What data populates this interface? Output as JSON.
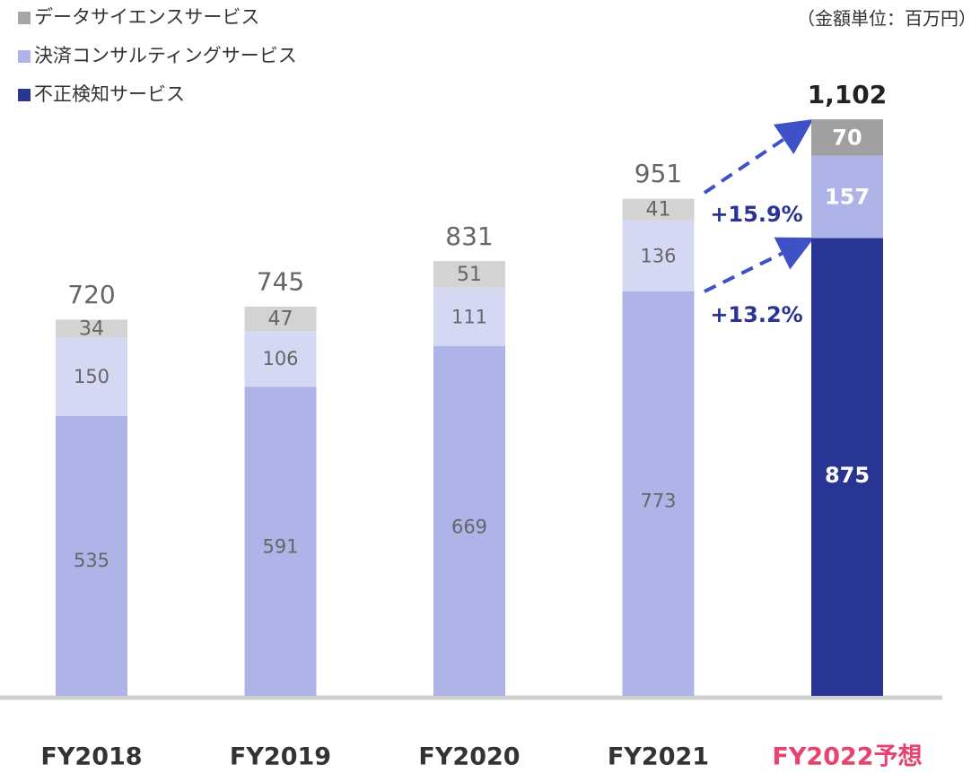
{
  "chart_data": {
    "type": "stacked_bar",
    "unit_note": "（金額単位：百万円）",
    "categories": [
      "FY2018",
      "FY2019",
      "FY2020",
      "FY2021",
      "FY2022予想"
    ],
    "category_colors": [
      "#333333",
      "#333333",
      "#333333",
      "#333333",
      "#e8436e"
    ],
    "series": [
      {
        "name": "不正検知サービス",
        "color": "#283593",
        "colors": [
          "#aeb4e8",
          "#aeb4e8",
          "#aeb4e8",
          "#aeb4e8",
          "#283593"
        ],
        "values": [
          535,
          591,
          669,
          773,
          875
        ]
      },
      {
        "name": "決済コンサルティングサービス",
        "color": "#aeb4e8",
        "colors": [
          "#d5d8f3",
          "#d5d8f3",
          "#d5d8f3",
          "#d5d8f3",
          "#aeb4e8"
        ],
        "values": [
          150,
          106,
          111,
          136,
          157
        ]
      },
      {
        "name": "データサイエンスサービス",
        "color": "#a6a6a6",
        "colors": [
          "#d3d3d3",
          "#d3d3d3",
          "#d3d3d3",
          "#d3d3d3",
          "#a0a0a0"
        ],
        "values": [
          34,
          47,
          51,
          41,
          70
        ]
      }
    ],
    "totals": [
      720,
      745,
      831,
      951,
      1102
    ],
    "total_labels": [
      "720",
      "745",
      "831",
      "951",
      "1,102"
    ],
    "annotations": [
      "+15.9%",
      "+13.2%"
    ]
  }
}
